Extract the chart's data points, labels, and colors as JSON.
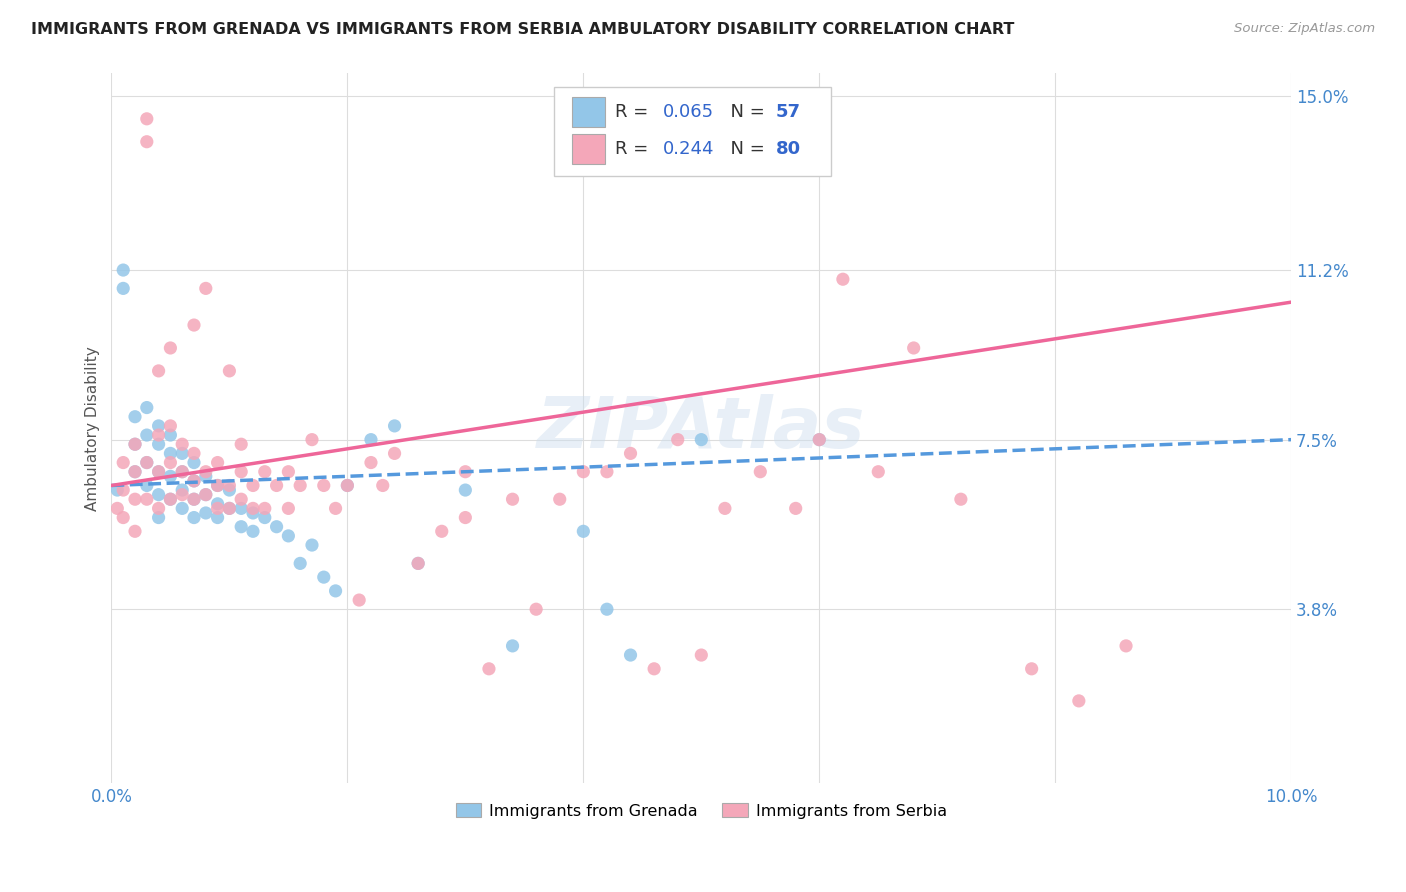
{
  "title": "IMMIGRANTS FROM GRENADA VS IMMIGRANTS FROM SERBIA AMBULATORY DISABILITY CORRELATION CHART",
  "source": "Source: ZipAtlas.com",
  "ylabel": "Ambulatory Disability",
  "xlim": [
    0.0,
    0.1
  ],
  "ylim": [
    0.0,
    0.155
  ],
  "ytick_positions": [
    0.038,
    0.075,
    0.112,
    0.15
  ],
  "ytick_labels": [
    "3.8%",
    "7.5%",
    "11.2%",
    "15.0%"
  ],
  "grenada_R": 0.065,
  "grenada_N": 57,
  "serbia_R": 0.244,
  "serbia_N": 80,
  "grenada_color": "#93C6E8",
  "serbia_color": "#F4A7B9",
  "grenada_line_color": "#5599DD",
  "serbia_line_color": "#EE6699",
  "background_color": "#FFFFFF",
  "grid_color": "#DDDDDD",
  "watermark": "ZIPAtlas",
  "legend_label_grenada": "Immigrants from Grenada",
  "legend_label_serbia": "Immigrants from Serbia",
  "grenada_x": [
    0.0005,
    0.001,
    0.001,
    0.002,
    0.002,
    0.002,
    0.003,
    0.003,
    0.003,
    0.003,
    0.004,
    0.004,
    0.004,
    0.004,
    0.004,
    0.005,
    0.005,
    0.005,
    0.005,
    0.006,
    0.006,
    0.006,
    0.006,
    0.007,
    0.007,
    0.007,
    0.007,
    0.008,
    0.008,
    0.008,
    0.009,
    0.009,
    0.009,
    0.01,
    0.01,
    0.011,
    0.011,
    0.012,
    0.012,
    0.013,
    0.014,
    0.015,
    0.016,
    0.017,
    0.018,
    0.019,
    0.02,
    0.022,
    0.024,
    0.026,
    0.03,
    0.034,
    0.04,
    0.042,
    0.044,
    0.05,
    0.06
  ],
  "grenada_y": [
    0.064,
    0.112,
    0.108,
    0.068,
    0.074,
    0.08,
    0.065,
    0.07,
    0.076,
    0.082,
    0.058,
    0.063,
    0.068,
    0.074,
    0.078,
    0.062,
    0.067,
    0.072,
    0.076,
    0.06,
    0.064,
    0.068,
    0.072,
    0.058,
    0.062,
    0.066,
    0.07,
    0.059,
    0.063,
    0.067,
    0.058,
    0.061,
    0.065,
    0.06,
    0.064,
    0.056,
    0.06,
    0.055,
    0.059,
    0.058,
    0.056,
    0.054,
    0.048,
    0.052,
    0.045,
    0.042,
    0.065,
    0.075,
    0.078,
    0.048,
    0.064,
    0.03,
    0.055,
    0.038,
    0.028,
    0.075,
    0.075
  ],
  "serbia_x": [
    0.0005,
    0.001,
    0.001,
    0.001,
    0.002,
    0.002,
    0.002,
    0.002,
    0.003,
    0.003,
    0.003,
    0.003,
    0.004,
    0.004,
    0.004,
    0.004,
    0.005,
    0.005,
    0.005,
    0.005,
    0.006,
    0.006,
    0.006,
    0.007,
    0.007,
    0.007,
    0.007,
    0.008,
    0.008,
    0.008,
    0.009,
    0.009,
    0.009,
    0.01,
    0.01,
    0.01,
    0.011,
    0.011,
    0.011,
    0.012,
    0.012,
    0.013,
    0.013,
    0.014,
    0.015,
    0.015,
    0.016,
    0.017,
    0.018,
    0.019,
    0.02,
    0.021,
    0.022,
    0.023,
    0.024,
    0.026,
    0.028,
    0.03,
    0.03,
    0.032,
    0.034,
    0.036,
    0.038,
    0.04,
    0.042,
    0.044,
    0.046,
    0.048,
    0.05,
    0.052,
    0.055,
    0.058,
    0.06,
    0.062,
    0.065,
    0.068,
    0.072,
    0.078,
    0.082,
    0.086
  ],
  "serbia_y": [
    0.06,
    0.058,
    0.064,
    0.07,
    0.055,
    0.062,
    0.068,
    0.074,
    0.062,
    0.14,
    0.145,
    0.07,
    0.06,
    0.068,
    0.076,
    0.09,
    0.062,
    0.07,
    0.078,
    0.095,
    0.063,
    0.068,
    0.074,
    0.062,
    0.066,
    0.072,
    0.1,
    0.063,
    0.068,
    0.108,
    0.06,
    0.065,
    0.07,
    0.06,
    0.065,
    0.09,
    0.062,
    0.068,
    0.074,
    0.06,
    0.065,
    0.06,
    0.068,
    0.065,
    0.06,
    0.068,
    0.065,
    0.075,
    0.065,
    0.06,
    0.065,
    0.04,
    0.07,
    0.065,
    0.072,
    0.048,
    0.055,
    0.058,
    0.068,
    0.025,
    0.062,
    0.038,
    0.062,
    0.068,
    0.068,
    0.072,
    0.025,
    0.075,
    0.028,
    0.06,
    0.068,
    0.06,
    0.075,
    0.11,
    0.068,
    0.095,
    0.062,
    0.025,
    0.018,
    0.03
  ]
}
